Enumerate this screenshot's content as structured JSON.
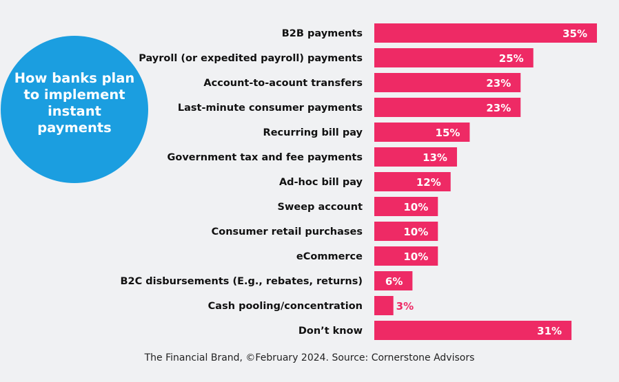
{
  "chart_data": {
    "type": "bar",
    "orientation": "horizontal",
    "title": "How banks plan to implement instant payments",
    "categories": [
      "B2B payments",
      "Payroll (or expedited payroll) payments",
      "Account-to-acount transfers",
      "Last-minute consumer payments",
      "Recurring bill pay",
      "Government tax and fee payments",
      "Ad-hoc bill pay",
      "Sweep account",
      "Consumer retail purchases",
      "eCommerce",
      "B2C disbursements (E.g., rebates, returns)",
      "Cash pooling/concentration",
      "Don’t know"
    ],
    "values": [
      35,
      25,
      23,
      23,
      15,
      13,
      12,
      10,
      10,
      10,
      6,
      3,
      31
    ],
    "value_labels": [
      "35%",
      "25%",
      "23%",
      "23%",
      "15%",
      "13%",
      "12%",
      "10%",
      "10%",
      "10%",
      "6%",
      "3%",
      "31%"
    ],
    "unit": "%",
    "xlim": [
      0,
      35
    ],
    "grid": false,
    "bar_color": "#ee2a65",
    "accent_color": "#1b9ee0"
  },
  "source": "The Financial Brand, ©February 2024. Source: Cornerstone Advisors"
}
